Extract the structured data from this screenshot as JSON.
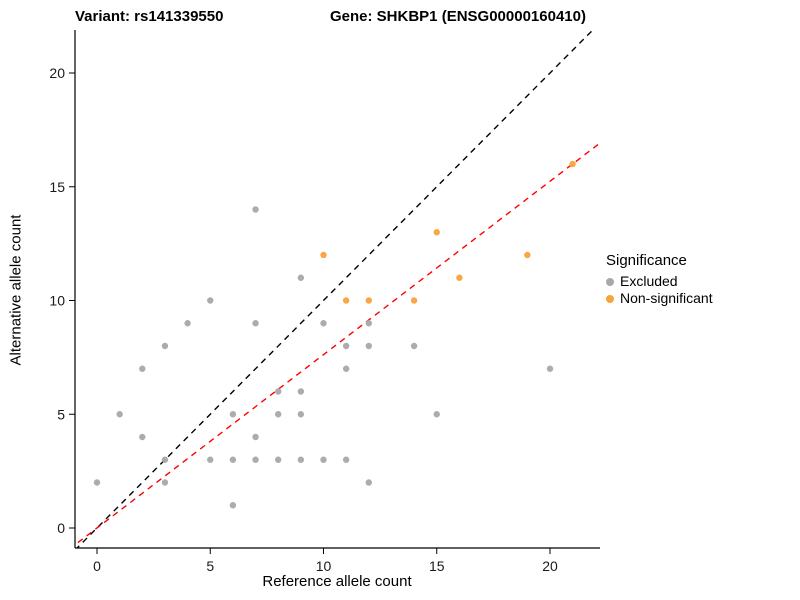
{
  "chart_data": {
    "type": "scatter",
    "title_left": "Variant: rs141339550",
    "title_right": "Gene: SHKBP1 (ENSG00000160410)",
    "xlabel": "Reference allele count",
    "ylabel": "Alternative allele count",
    "xlim": [
      -1,
      22.2
    ],
    "ylim": [
      -0.9,
      21.9
    ],
    "x_ticks": [
      0,
      5,
      10,
      15,
      20
    ],
    "y_ticks": [
      0,
      5,
      10,
      15,
      20
    ],
    "grid": false,
    "background": "#ffffff",
    "legend": {
      "title": "Significance",
      "position": "right",
      "items": [
        {
          "label": "Excluded",
          "color": "#A8A8A8"
        },
        {
          "label": "Non-significant",
          "color": "#F9A23B"
        }
      ]
    },
    "series": [
      {
        "name": "Excluded",
        "color": "#A8A8A8",
        "points": [
          [
            0,
            2
          ],
          [
            1,
            5
          ],
          [
            2,
            4
          ],
          [
            2,
            7
          ],
          [
            3,
            2
          ],
          [
            3,
            3
          ],
          [
            3,
            8
          ],
          [
            4,
            9
          ],
          [
            5,
            3
          ],
          [
            5,
            10
          ],
          [
            6,
            1
          ],
          [
            6,
            3
          ],
          [
            6,
            5
          ],
          [
            7,
            3
          ],
          [
            7,
            4
          ],
          [
            7,
            9
          ],
          [
            7,
            14
          ],
          [
            8,
            3
          ],
          [
            8,
            5
          ],
          [
            8,
            6
          ],
          [
            9,
            3
          ],
          [
            9,
            5
          ],
          [
            9,
            6
          ],
          [
            9,
            11
          ],
          [
            10,
            3
          ],
          [
            10,
            9
          ],
          [
            11,
            3
          ],
          [
            11,
            7
          ],
          [
            11,
            8
          ],
          [
            12,
            2
          ],
          [
            12,
            8
          ],
          [
            12,
            9
          ],
          [
            14,
            8
          ],
          [
            15,
            5
          ],
          [
            20,
            7
          ]
        ]
      },
      {
        "name": "Non-significant",
        "color": "#F9A23B",
        "points": [
          [
            10,
            12
          ],
          [
            11,
            10
          ],
          [
            12,
            10
          ],
          [
            14,
            10
          ],
          [
            15,
            13
          ],
          [
            16,
            11
          ],
          [
            19,
            12
          ],
          [
            21,
            16
          ]
        ]
      }
    ],
    "lines": [
      {
        "name": "identity",
        "color": "#000000",
        "slope": 1.0,
        "intercept": 0,
        "style": "dashed"
      },
      {
        "name": "fit",
        "color": "#FF0000",
        "slope": 0.762,
        "intercept": 0,
        "style": "dashed"
      }
    ]
  }
}
